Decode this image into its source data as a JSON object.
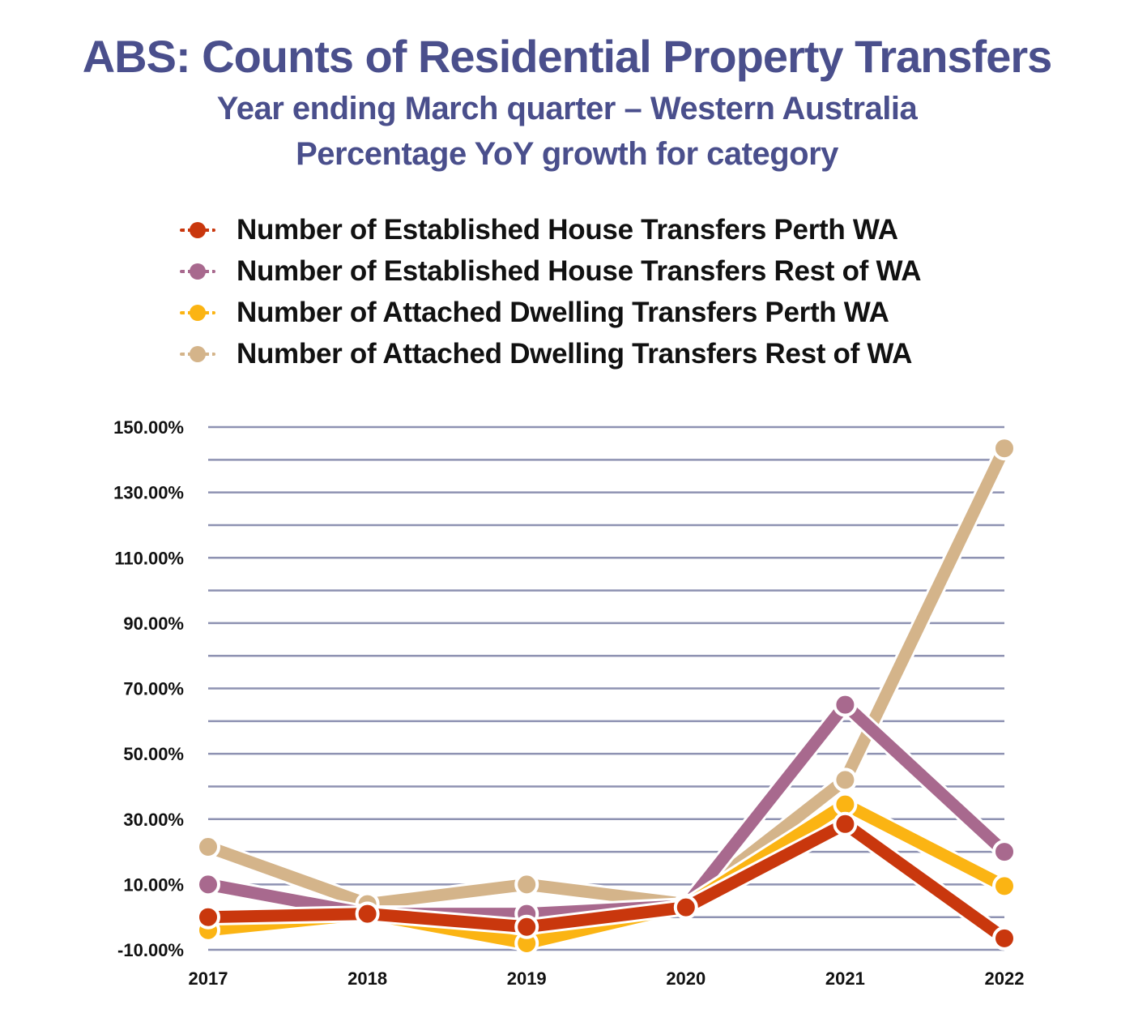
{
  "title": "ABS: Counts of Residential Property Transfers",
  "subtitle": "Year ending March quarter – Western Australia",
  "subtitle2": "Percentage YoY growth for category",
  "chart_data": {
    "type": "line",
    "title": "ABS: Counts of Residential Property Transfers",
    "subtitle": "Year ending March quarter – Western Australia / Percentage YoY growth for category",
    "xlabel": "",
    "ylabel": "",
    "categories": [
      "2017",
      "2018",
      "2019",
      "2020",
      "2021",
      "2022"
    ],
    "ylim": [
      -10,
      150
    ],
    "yticks": [
      "150.00%",
      "130.00%",
      "110.00%",
      "90.00%",
      "70.00%",
      "50.00%",
      "30.00%",
      "10.00%",
      "-10.00%"
    ],
    "yticks_values": [
      150,
      130,
      110,
      90,
      70,
      50,
      30,
      10,
      -10
    ],
    "grid": true,
    "legend_position": "top",
    "series": [
      {
        "name": "Number of Attached Dwelling Transfers Rest of WA",
        "color": "#d4b48a",
        "values": [
          21.5,
          4,
          10,
          4,
          42,
          143.5
        ]
      },
      {
        "name": "Number of Established House Transfers Rest of WA",
        "color": "#a8698e",
        "values": [
          10,
          1,
          1,
          3.5,
          65,
          20
        ]
      },
      {
        "name": "Number of Attached Dwelling Transfers Perth WA",
        "color": "#fbb413",
        "values": [
          -4,
          1,
          -8,
          3.5,
          34.5,
          9.5
        ]
      },
      {
        "name": "Number of Established House Transfers Perth WA",
        "color": "#c9370d",
        "values": [
          0,
          1,
          -3,
          3,
          28.5,
          -6.5
        ]
      }
    ],
    "legend_order": [
      3,
      1,
      2,
      0
    ]
  }
}
